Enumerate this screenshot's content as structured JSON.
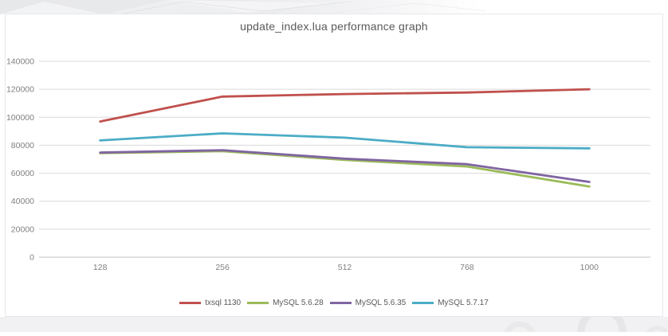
{
  "chart_data": {
    "type": "line",
    "title": "update_index.lua performance graph",
    "categories": [
      "128",
      "256",
      "512",
      "768",
      "1000"
    ],
    "series": [
      {
        "name": "txsql 1130",
        "color": "#c0504d",
        "values": [
          97000,
          114800,
          116600,
          117700,
          120000
        ]
      },
      {
        "name": "MySQL 5.6.28",
        "color": "#9bbb59",
        "values": [
          74300,
          75800,
          69500,
          64800,
          50500
        ]
      },
      {
        "name": "MySQL 5.6.35",
        "color": "#8064a2",
        "values": [
          74800,
          76500,
          70400,
          66500,
          53800
        ]
      },
      {
        "name": "MySQL 5.7.17",
        "color": "#4bacc6",
        "values": [
          83500,
          88500,
          85400,
          78600,
          77800
        ]
      }
    ],
    "xlabel": "",
    "ylabel": "",
    "ylim": [
      0,
      140000
    ],
    "yticks": [
      0,
      20000,
      40000,
      60000,
      80000,
      100000,
      120000,
      140000
    ],
    "grid": "horizontal",
    "legend_position": "bottom",
    "gridline_color": "#d9d9d9",
    "axis_line_color": "#bfbfbf",
    "tick_label_color": "#808080",
    "title_color": "#595959"
  }
}
